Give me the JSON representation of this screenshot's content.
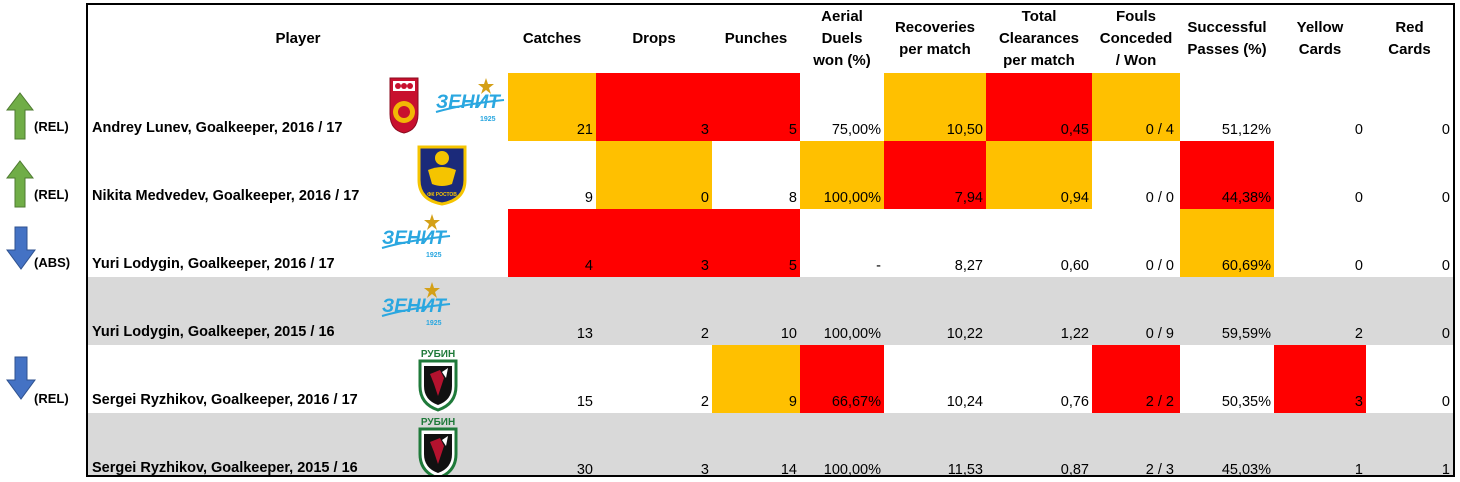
{
  "headers": {
    "player": "Player",
    "catches": "Catches",
    "drops": "Drops",
    "punches": "Punches",
    "aerial": [
      "Aerial",
      "Duels",
      "won (%)"
    ],
    "recoveries": [
      "Recoveries",
      "per match"
    ],
    "clearances": [
      "Total",
      "Clearances",
      "per match"
    ],
    "fouls": [
      "Fouls",
      "Conceded",
      "/ Won"
    ],
    "passes": [
      "Successful",
      "Passes (%)"
    ],
    "yellow": [
      "Yellow",
      "Cards"
    ],
    "red": [
      "Red",
      "Cards"
    ]
  },
  "indicators": [
    {
      "direction": "up",
      "label": "(REL)"
    },
    {
      "direction": "up",
      "label": "(REL)"
    },
    {
      "direction": "down",
      "label": "(ABS)"
    },
    {
      "direction": "none",
      "label": ""
    },
    {
      "direction": "down",
      "label": "(REL)"
    },
    {
      "direction": "none",
      "label": ""
    }
  ],
  "colors": {
    "red": "#ff0000",
    "orange": "#ffc000",
    "grey": "#d9d9d9",
    "up_arrow": "#70ad47",
    "down_arrow": "#4472c4"
  },
  "logo_text": {
    "zenit": "ЗЕНИТ",
    "zenit_year": "1925",
    "rubin": "РУБИН",
    "rostov": "ФК РОСТОВ"
  },
  "rows": [
    {
      "player": "Andrey Lunev, Goalkeeper, 2016 / 17",
      "logos": [
        "ufa",
        "zenit"
      ],
      "catches": "21",
      "drops": "3",
      "punches": "5",
      "aerial": "75,00%",
      "recoveries": "10,50",
      "clearances": "0,45",
      "fouls": "0 / 4",
      "passes": "51,12%",
      "yellow": "0",
      "red": "0",
      "hl": {
        "catches": "orange",
        "drops": "red",
        "punches": "red",
        "recoveries": "orange",
        "clearances": "red",
        "fouls": "orange"
      }
    },
    {
      "player": "Nikita Medvedev, Goalkeeper, 2016 / 17",
      "logos": [
        "rostov"
      ],
      "catches": "9",
      "drops": "0",
      "punches": "8",
      "aerial": "100,00%",
      "recoveries": "7,94",
      "clearances": "0,94",
      "fouls": "0 / 0",
      "passes": "44,38%",
      "yellow": "0",
      "red": "0",
      "hl": {
        "drops": "orange",
        "aerial": "orange",
        "recoveries": "red",
        "clearances": "orange",
        "passes": "red"
      }
    },
    {
      "player": "Yuri Lodygin, Goalkeeper, 2016 / 17",
      "logos": [
        "zenit"
      ],
      "catches": "4",
      "drops": "3",
      "punches": "5",
      "aerial": "-",
      "recoveries": "8,27",
      "clearances": "0,60",
      "fouls": "0 / 0",
      "passes": "60,69%",
      "yellow": "0",
      "red": "0",
      "hl": {
        "catches": "red",
        "drops": "red",
        "punches": "red",
        "passes": "orange"
      }
    },
    {
      "player": "Yuri Lodygin, Goalkeeper, 2015 / 16",
      "logos": [
        "zenit"
      ],
      "grey": true,
      "catches": "13",
      "drops": "2",
      "punches": "10",
      "aerial": "100,00%",
      "recoveries": "10,22",
      "clearances": "1,22",
      "fouls": "0 / 9",
      "passes": "59,59%",
      "yellow": "2",
      "red": "0",
      "hl": {}
    },
    {
      "player": "Sergei Ryzhikov, Goalkeeper, 2016 / 17",
      "logos": [
        "rubin"
      ],
      "catches": "15",
      "drops": "2",
      "punches": "9",
      "aerial": "66,67%",
      "recoveries": "10,24",
      "clearances": "0,76",
      "fouls": "2 / 2",
      "passes": "50,35%",
      "yellow": "3",
      "red": "0",
      "hl": {
        "punches": "orange",
        "aerial": "red",
        "fouls": "red",
        "yellow": "red"
      }
    },
    {
      "player": "Sergei Ryzhikov, Goalkeeper, 2015 / 16",
      "logos": [
        "rubin"
      ],
      "grey": true,
      "catches": "30",
      "drops": "3",
      "punches": "14",
      "aerial": "100,00%",
      "recoveries": "11,53",
      "clearances": "0,87",
      "fouls": "2 / 3",
      "passes": "45,03%",
      "yellow": "1",
      "red": "1",
      "hl": {}
    }
  ]
}
